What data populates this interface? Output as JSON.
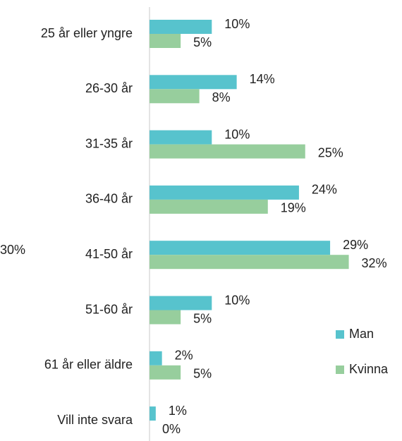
{
  "chart_data": {
    "type": "bar",
    "orientation": "horizontal",
    "categories": [
      "25 år eller yngre",
      "26-30 år",
      "31-35 år",
      "36-40 år",
      "41-50 år",
      "51-60 år",
      "61 år eller äldre",
      "Vill inte svara"
    ],
    "series": [
      {
        "name": "Man",
        "color": "#57c3cd",
        "values": [
          10,
          14,
          10,
          24,
          29,
          10,
          2,
          1
        ],
        "value_labels": [
          "10%",
          "14%",
          "10%",
          "24%",
          "29%",
          "10%",
          "2%",
          "1%"
        ]
      },
      {
        "name": "Kvinna",
        "color": "#97ce9d",
        "values": [
          5,
          8,
          25,
          19,
          32,
          5,
          5,
          0
        ],
        "value_labels": [
          "5%",
          "8%",
          "25%",
          "19%",
          "32%",
          "5%",
          "5%",
          "0%"
        ]
      }
    ],
    "legend": "right",
    "annotation": "30%"
  }
}
